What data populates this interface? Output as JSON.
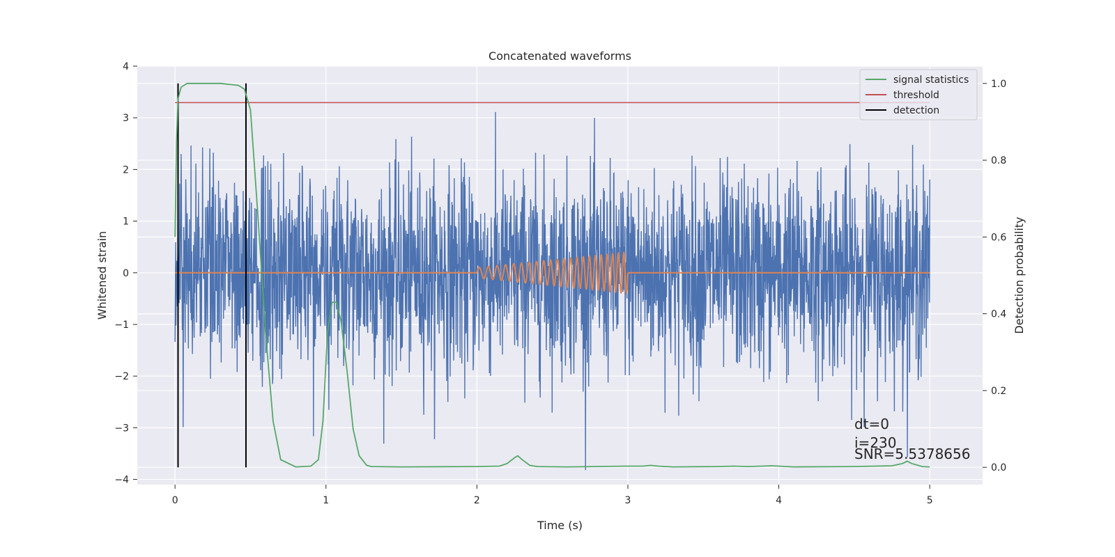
{
  "chart_data": {
    "type": "line",
    "title": "Concatenated waveforms",
    "xlabel": "Time (s)",
    "ylabel": "Whitened strain",
    "ylabel_right": "Detection probability",
    "xlim": [
      -0.25,
      5.35
    ],
    "ylim": [
      -4.1,
      4.0
    ],
    "ylim_right": [
      -0.045,
      1.045
    ],
    "x_ticks": [
      0,
      1,
      2,
      3,
      4,
      5
    ],
    "y_ticks": [
      -4,
      -3,
      -2,
      -1,
      0,
      1,
      2,
      3,
      4
    ],
    "y_ticks_right": [
      0.0,
      0.2,
      0.4,
      0.6,
      0.8,
      1.0
    ],
    "x_tick_labels": [
      "0",
      "1",
      "2",
      "3",
      "4",
      "5"
    ],
    "y_tick_labels": [
      "−4",
      "−3",
      "−2",
      "−1",
      "0",
      "1",
      "2",
      "3",
      "4"
    ],
    "y_tick_labels_right": [
      "0.0",
      "0.2",
      "0.4",
      "0.6",
      "0.8",
      "1.0"
    ],
    "grid": true,
    "legend_position": "top-right",
    "colors": {
      "background": "#eaeaf2",
      "strain": "#4c72b0",
      "waveform": "#dd8452",
      "signal_statistics": "#55a868",
      "threshold": "#c44e52",
      "detection": "#000000"
    },
    "legend": [
      "signal statistics",
      "threshold",
      "detection"
    ],
    "series": [
      {
        "name": "whitened strain",
        "axis": "left",
        "kind": "noise",
        "x_range": [
          0,
          5
        ],
        "typical_std": 0.95,
        "max": 3.62,
        "min": -3.83
      },
      {
        "name": "waveform",
        "axis": "left",
        "kind": "chirp",
        "x_range": [
          2.0,
          3.0
        ],
        "amplitude_start": 0.1,
        "amplitude_end": 0.4,
        "zero_outside": [
          0,
          5
        ]
      },
      {
        "name": "signal statistics",
        "axis": "right",
        "x": [
          0.0,
          0.01,
          0.02,
          0.04,
          0.08,
          0.15,
          0.3,
          0.42,
          0.46,
          0.5,
          0.55,
          0.6,
          0.65,
          0.7,
          0.8,
          0.9,
          0.95,
          0.98,
          1.01,
          1.04,
          1.07,
          1.1,
          1.14,
          1.18,
          1.22,
          1.27,
          1.3,
          1.5,
          2.0,
          2.15,
          2.2,
          2.25,
          2.27,
          2.3,
          2.35,
          2.4,
          2.6,
          3.0,
          3.1,
          3.15,
          3.2,
          3.3,
          3.6,
          3.7,
          3.8,
          3.95,
          4.0,
          4.1,
          4.5,
          4.75,
          4.82,
          4.85,
          4.88,
          4.95,
          5.0
        ],
        "y": [
          0.6,
          0.85,
          0.96,
          0.99,
          1.0,
          1.0,
          1.0,
          0.995,
          0.985,
          0.93,
          0.65,
          0.35,
          0.12,
          0.02,
          0.001,
          0.003,
          0.02,
          0.12,
          0.35,
          0.43,
          0.43,
          0.38,
          0.25,
          0.1,
          0.03,
          0.005,
          0.002,
          0.001,
          0.002,
          0.003,
          0.01,
          0.025,
          0.03,
          0.02,
          0.005,
          0.002,
          0.001,
          0.003,
          0.003,
          0.005,
          0.003,
          0.001,
          0.002,
          0.003,
          0.002,
          0.004,
          0.003,
          0.001,
          0.002,
          0.004,
          0.01,
          0.016,
          0.01,
          0.002,
          0.001
        ]
      },
      {
        "name": "threshold",
        "axis": "right",
        "x": [
          0,
          5
        ],
        "y": [
          0.95,
          0.95
        ]
      },
      {
        "name": "detection",
        "axis": "right",
        "kind": "vlines",
        "x": [
          0.02,
          0.47
        ],
        "y": [
          0.0,
          1.0
        ]
      }
    ],
    "annotations": [
      "dt=0",
      "i=230",
      "SNR=5.5378656"
    ]
  }
}
